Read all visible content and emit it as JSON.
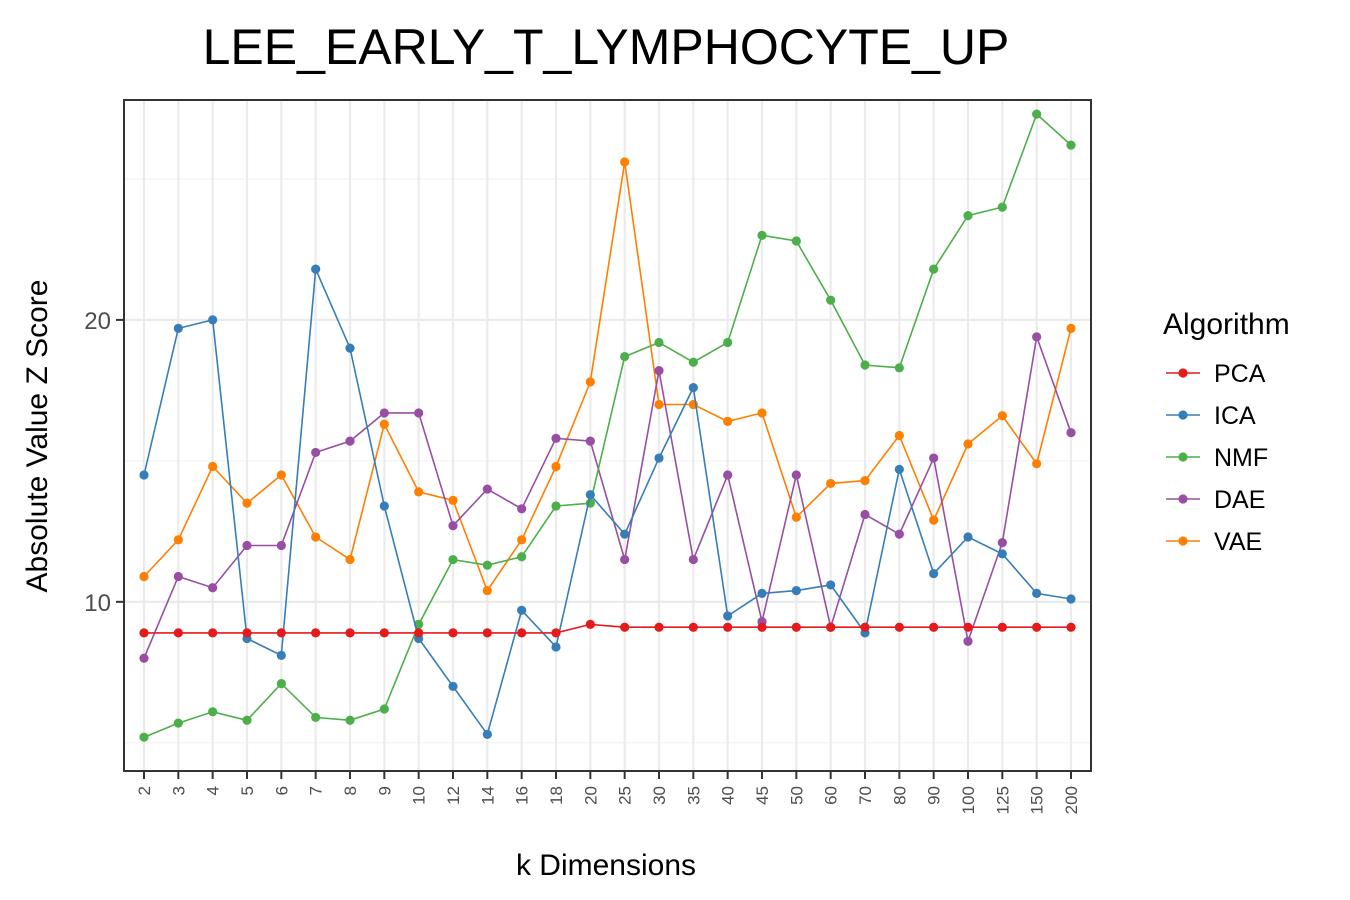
{
  "chart_data": {
    "type": "line",
    "title": "LEE_EARLY_T_LYMPHOCYTE_UP",
    "xlabel": "k Dimensions",
    "ylabel": "Absolute Value Z Score",
    "categories": [
      "2",
      "3",
      "4",
      "5",
      "6",
      "7",
      "8",
      "9",
      "10",
      "12",
      "14",
      "16",
      "18",
      "20",
      "25",
      "30",
      "35",
      "40",
      "45",
      "50",
      "60",
      "70",
      "80",
      "90",
      "100",
      "125",
      "150",
      "200"
    ],
    "ylim": [
      4.0,
      27.8
    ],
    "yticks": [
      10,
      20
    ],
    "grid": true,
    "legend": {
      "title": "Algorithm",
      "position": "right"
    },
    "series": [
      {
        "name": "PCA",
        "color": "#e41a1c",
        "values": [
          8.9,
          8.9,
          8.9,
          8.9,
          8.9,
          8.9,
          8.9,
          8.9,
          8.9,
          8.9,
          8.9,
          8.9,
          8.9,
          9.2,
          9.1,
          9.1,
          9.1,
          9.1,
          9.1,
          9.1,
          9.1,
          9.1,
          9.1,
          9.1,
          9.1,
          9.1,
          9.1,
          9.1
        ]
      },
      {
        "name": "ICA",
        "color": "#377eb8",
        "values": [
          14.5,
          19.7,
          20.0,
          8.7,
          8.1,
          21.8,
          19.0,
          13.4,
          8.7,
          7.0,
          5.3,
          9.7,
          8.4,
          13.8,
          12.4,
          15.1,
          17.6,
          9.5,
          10.3,
          10.4,
          10.6,
          8.9,
          14.7,
          11.0,
          12.3,
          11.7,
          10.3,
          10.1
        ]
      },
      {
        "name": "NMF",
        "color": "#4daf4a",
        "values": [
          5.2,
          5.7,
          6.1,
          5.8,
          7.1,
          5.9,
          5.8,
          6.2,
          9.2,
          11.5,
          11.3,
          11.6,
          13.4,
          13.5,
          18.7,
          19.2,
          18.5,
          19.2,
          23.0,
          22.8,
          20.7,
          18.4,
          18.3,
          21.8,
          23.7,
          24.0,
          27.3,
          26.2
        ]
      },
      {
        "name": "DAE",
        "color": "#984ea3",
        "values": [
          8.0,
          10.9,
          10.5,
          12.0,
          12.0,
          15.3,
          15.7,
          16.7,
          16.7,
          12.7,
          14.0,
          13.3,
          15.8,
          15.7,
          11.5,
          18.2,
          11.5,
          14.5,
          9.3,
          14.5,
          9.1,
          13.1,
          12.4,
          15.1,
          8.6,
          12.1,
          19.4,
          16.0
        ]
      },
      {
        "name": "VAE",
        "color": "#ff7f00",
        "values": [
          10.9,
          12.2,
          14.8,
          13.5,
          14.5,
          12.3,
          11.5,
          16.3,
          13.9,
          13.6,
          10.4,
          12.2,
          14.8,
          17.8,
          25.6,
          17.0,
          17.0,
          16.4,
          16.7,
          13.0,
          14.2,
          14.3,
          15.9,
          12.9,
          15.6,
          16.6,
          14.9,
          19.7
        ]
      }
    ]
  }
}
